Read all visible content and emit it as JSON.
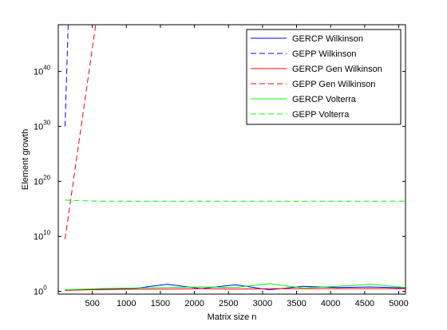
{
  "chart_data": {
    "type": "line",
    "title": "",
    "xlabel": "Matrix size n",
    "ylabel": "Element growth",
    "y_scale": "log10",
    "xlim": [
      0,
      5100
    ],
    "ylim_log10": [
      -0.5,
      48.5
    ],
    "x_ticks": [
      500,
      1000,
      1500,
      2000,
      2500,
      3000,
      3500,
      4000,
      4500,
      5000
    ],
    "y_ticks": [
      {
        "exp": 0,
        "base": "10",
        "sup": "0"
      },
      {
        "exp": 10,
        "base": "10",
        "sup": "10"
      },
      {
        "exp": 20,
        "base": "10",
        "sup": "20"
      },
      {
        "exp": 30,
        "base": "10",
        "sup": "30"
      },
      {
        "exp": 40,
        "base": "10",
        "sup": "40"
      }
    ],
    "legend_position": "top-right",
    "series": [
      {
        "name": "GERCP Wilkinson",
        "color": "#0000ff",
        "dash": "solid",
        "x": [
          100,
          500,
          1100,
          1600,
          2100,
          2600,
          3100,
          3600,
          4100,
          4600,
          5100
        ],
        "y_log10": [
          0.2,
          0.4,
          0.5,
          1.3,
          0.5,
          1.2,
          0.3,
          0.9,
          0.7,
          0.8,
          0.6
        ]
      },
      {
        "name": "GEPP Wilkinson",
        "color": "#0000ff",
        "dash": "dashed",
        "x": [
          100,
          145
        ],
        "y_log10": [
          30,
          48.5
        ]
      },
      {
        "name": "GERCP Gen Wilkinson",
        "color": "#ff0000",
        "dash": "solid",
        "x": [
          100,
          500,
          1100,
          1600,
          2100,
          2600,
          3100,
          3600,
          4100,
          4600,
          5100
        ],
        "y_log10": [
          0.2,
          0.3,
          0.4,
          0.4,
          0.5,
          0.4,
          0.5,
          0.5,
          0.5,
          0.5,
          0.5
        ]
      },
      {
        "name": "GEPP Gen Wilkinson",
        "color": "#ff0000",
        "dash": "dashed",
        "x": [
          100,
          550
        ],
        "y_log10": [
          9.5,
          48.5
        ]
      },
      {
        "name": "GERCP Volterra",
        "color": "#00ff00",
        "dash": "solid",
        "x": [
          100,
          600,
          1100,
          1600,
          2100,
          2600,
          3100,
          3600,
          4100,
          4600,
          5100
        ],
        "y_log10": [
          0.3,
          0.5,
          0.6,
          0.7,
          0.8,
          0.7,
          1.4,
          0.6,
          0.9,
          1.3,
          0.7
        ]
      },
      {
        "name": "GEPP Volterra",
        "color": "#00ff00",
        "dash": "dashed",
        "x": [
          100,
          600,
          1100,
          1600,
          2100,
          2600,
          3100,
          3600,
          4100,
          4600,
          5100
        ],
        "y_log10": [
          16.6,
          16.4,
          16.4,
          16.4,
          16.4,
          16.4,
          16.4,
          16.4,
          16.4,
          16.4,
          16.4
        ]
      }
    ]
  }
}
